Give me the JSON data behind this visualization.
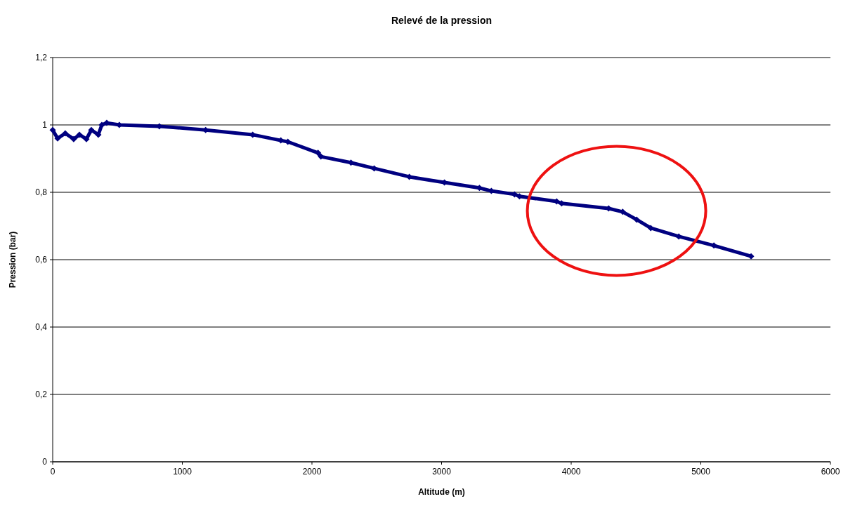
{
  "chart_data": {
    "type": "line",
    "title": "Relevé de la pression",
    "xlabel": "Altitude (m)",
    "ylabel": "Pression (bar)",
    "x": [
      0,
      38,
      97,
      162,
      206,
      260,
      298,
      352,
      379,
      417,
      514,
      823,
      1180,
      1543,
      1760,
      1814,
      2047,
      2069,
      2301,
      2480,
      2751,
      3022,
      3292,
      3384,
      3563,
      3601,
      3888,
      3926,
      4289,
      4397,
      4505,
      4614,
      4830,
      5101,
      5388
    ],
    "series": [
      {
        "color": "#000080",
        "values": [
          0.985,
          0.96,
          0.975,
          0.958,
          0.971,
          0.958,
          0.985,
          0.971,
          1.0,
          1.006,
          1.0,
          0.996,
          0.985,
          0.971,
          0.954,
          0.95,
          0.917,
          0.906,
          0.888,
          0.871,
          0.846,
          0.829,
          0.813,
          0.804,
          0.794,
          0.788,
          0.773,
          0.767,
          0.752,
          0.742,
          0.719,
          0.694,
          0.669,
          0.642,
          0.61
        ]
      }
    ],
    "xlim": [
      0,
      6000
    ],
    "xticks": [
      0,
      1000,
      2000,
      3000,
      4000,
      5000,
      6000
    ],
    "ylim": [
      0,
      1.2
    ],
    "yticks": [
      0,
      {
        "value": 0.2,
        "label": "0,2"
      },
      {
        "value": 0.4,
        "label": "0,4"
      },
      {
        "value": 0.6,
        "label": "0,6"
      },
      {
        "value": 0.8,
        "label": "0,8"
      },
      1,
      {
        "value": 1.2,
        "label": "1,2"
      }
    ],
    "grid": "y",
    "marker": "diamond",
    "line_style": "solid"
  }
}
